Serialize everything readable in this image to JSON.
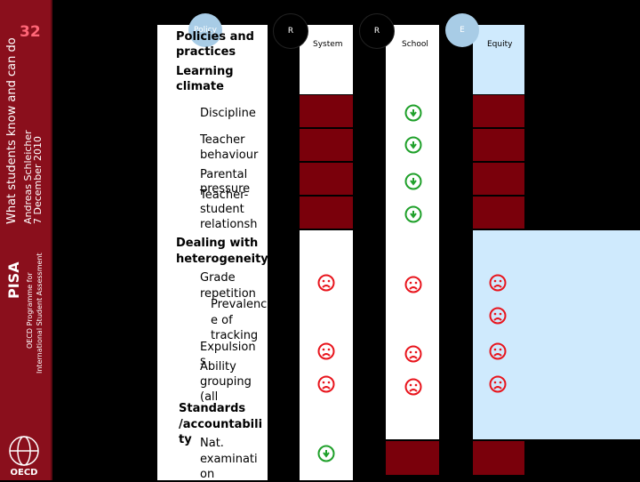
{
  "sidebar": {
    "slide_number": "32",
    "program_title": "What students know and can do",
    "author": "Andreas Schleicher",
    "date": "7 December 2010",
    "brand": "PISA",
    "subtitle_1": "OECD Programme for",
    "subtitle_2": "International Student Assessment",
    "logo_label": "OECD"
  },
  "table": {
    "policy_badge": "Policy",
    "header_badges": [
      "R",
      "R",
      "E"
    ],
    "column_labels": [
      "System",
      "School",
      "Equity"
    ],
    "rows": {
      "r1": "Policies and",
      "r2": "practices",
      "r3": "Learning",
      "r4": "climate",
      "r5": "Discipline",
      "r6": "Teacher",
      "r7": "behaviour",
      "r8": "Parental",
      "r9": "pressure",
      "r10": "Teacher-",
      "r11": "student",
      "r12": "relationsh",
      "r13": "Dealing with",
      "r14": "heterogeneity",
      "r15": "Grade",
      "r16": "repetition",
      "r17": "Prevalenc",
      "r18": "e of",
      "r19": "tracking",
      "r20": "Expulsion",
      "r21": "s",
      "r22": "Ability",
      "r23": "grouping",
      "r24": "(all",
      "r25": "Standards",
      "r26": "/accountabili",
      "r27": "ty",
      "r28": "Nat.",
      "r29": "examinati",
      "r30": "on"
    }
  },
  "colors": {
    "positive": "#1fa02a",
    "negative": "#e8141c",
    "dark_cell": "#7a000b",
    "light_cell": "#cfeafd",
    "badge": "#a8cce6"
  }
}
